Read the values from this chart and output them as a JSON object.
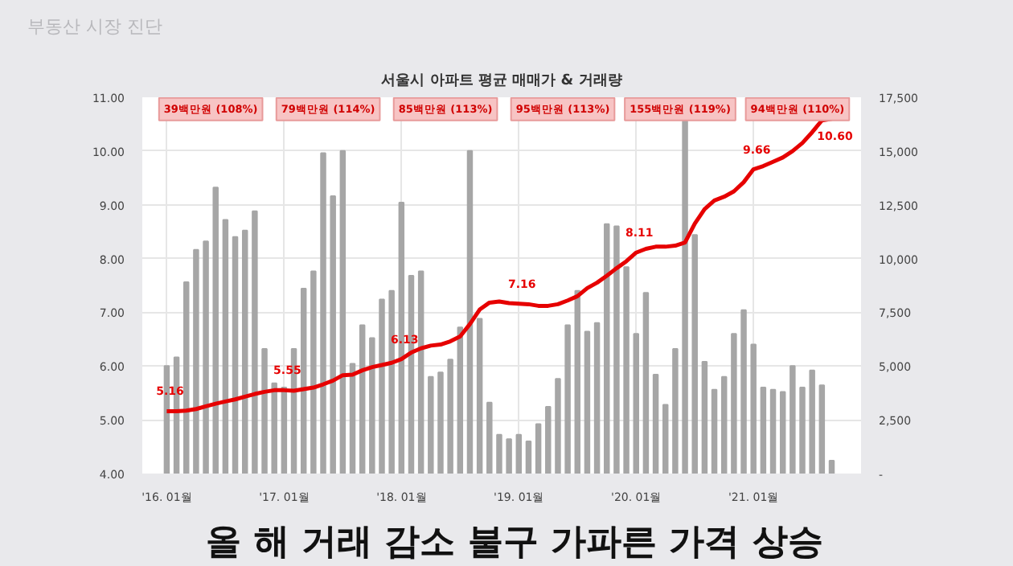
{
  "chart_data": {
    "type": "bar",
    "title": "서울시 아파트 평균 매매가 & 거래량",
    "categories": [
      "'16. 01월",
      null,
      null,
      null,
      null,
      null,
      null,
      null,
      null,
      null,
      null,
      null,
      "'17. 01월",
      null,
      null,
      null,
      null,
      null,
      null,
      null,
      null,
      null,
      null,
      null,
      "'18. 01월",
      null,
      null,
      null,
      null,
      null,
      null,
      null,
      null,
      null,
      null,
      null,
      "'19. 01월",
      null,
      null,
      null,
      null,
      null,
      null,
      null,
      null,
      null,
      null,
      null,
      "'20. 01월",
      null,
      null,
      null,
      null,
      null,
      null,
      null,
      null,
      null,
      null,
      null,
      "'21. 01월",
      null,
      null,
      null,
      null,
      null,
      null,
      null,
      null
    ],
    "series": [
      {
        "axis": "y2",
        "color": "#a6a6a6",
        "values": [
          5000,
          5400,
          8900,
          10400,
          10800,
          13300,
          11800,
          11000,
          11300,
          12200,
          5800,
          4200,
          4000,
          5800,
          8600,
          9400,
          14900,
          12900,
          15000,
          5100,
          6900,
          6300,
          8100,
          8500,
          12600,
          9200,
          9400,
          4500,
          4700,
          5300,
          6800,
          15000,
          7200,
          3300,
          1800,
          1600,
          1800,
          1500,
          2300,
          3100,
          4400,
          6900,
          8500,
          6600,
          7000,
          11600,
          11500,
          9600,
          6500,
          8400,
          4600,
          3200,
          5800,
          16400,
          11100,
          5200,
          3900,
          4500,
          6500,
          7600,
          6000,
          4000,
          3900,
          3800,
          5000,
          4000,
          4800,
          4100,
          600
        ]
      },
      {
        "type": "line",
        "color": "#e60000",
        "values": [
          5.16,
          5.16,
          5.17,
          5.2,
          5.25,
          5.3,
          5.34,
          5.38,
          5.43,
          5.48,
          5.52,
          5.55,
          5.55,
          5.54,
          5.57,
          5.6,
          5.66,
          5.73,
          5.83,
          5.84,
          5.92,
          5.98,
          6.02,
          6.06,
          6.13,
          6.25,
          6.33,
          6.38,
          6.4,
          6.46,
          6.55,
          6.78,
          7.05,
          7.18,
          7.2,
          7.17,
          7.16,
          7.15,
          7.12,
          7.12,
          7.15,
          7.22,
          7.3,
          7.45,
          7.55,
          7.68,
          7.82,
          7.95,
          8.11,
          8.18,
          8.22,
          8.22,
          8.24,
          8.3,
          8.65,
          8.92,
          9.08,
          9.15,
          9.25,
          9.42,
          9.66,
          9.72,
          9.8,
          9.88,
          10.0,
          10.15,
          10.35,
          10.57,
          10.6
        ],
        "value_labels": [
          "5.16",
          null,
          null,
          null,
          null,
          null,
          null,
          null,
          null,
          null,
          null,
          null,
          "5.55",
          null,
          null,
          null,
          null,
          null,
          null,
          null,
          null,
          null,
          null,
          null,
          "6.13",
          null,
          null,
          null,
          null,
          null,
          null,
          null,
          null,
          null,
          null,
          null,
          "7.16",
          null,
          null,
          null,
          null,
          null,
          null,
          null,
          null,
          null,
          null,
          null,
          "8.11",
          null,
          null,
          null,
          null,
          null,
          null,
          null,
          null,
          null,
          null,
          null,
          "9.66",
          null,
          null,
          null,
          null,
          null,
          null,
          null,
          "10.60"
        ]
      }
    ],
    "ylim": [
      4,
      11
    ],
    "yticks": [
      {
        "value": 4,
        "label": "4.00"
      },
      {
        "value": 5,
        "label": "5.00"
      },
      {
        "value": 6,
        "label": "6.00"
      },
      {
        "value": 7,
        "label": "7.00"
      },
      {
        "value": 8,
        "label": "8.00"
      },
      {
        "value": 9,
        "label": "9.00"
      },
      {
        "value": 10,
        "label": "10.00"
      },
      {
        "value": 11,
        "label": "11.00"
      }
    ],
    "y2lim": [
      0,
      17500
    ],
    "y2ticks": [
      {
        "value": 0,
        "label": "-"
      },
      {
        "value": 2500,
        "label": "2,500"
      },
      {
        "value": 5000,
        "label": "5,000"
      },
      {
        "value": 7500,
        "label": "7,500"
      },
      {
        "value": 10000,
        "label": "10,000"
      },
      {
        "value": 12500,
        "label": "12,500"
      },
      {
        "value": 15000,
        "label": "15,000"
      },
      {
        "value": 17500,
        "label": "17,500"
      }
    ],
    "grid": true,
    "annotations": [
      "부동산 시장 진단",
      "39백만원 (108%)",
      "79백만원 (114%)",
      "85백만원 (113%)",
      "95백만원 (113%)",
      "155백만원 (119%)",
      "94백만원 (110%)",
      "올 해 거래 감소 불구 가파른 가격 상승"
    ]
  }
}
